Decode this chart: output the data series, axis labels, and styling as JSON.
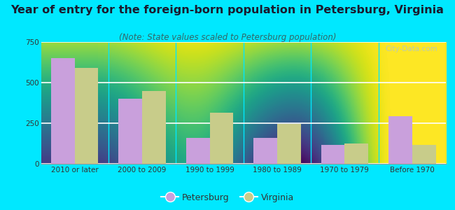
{
  "title": "Year of entry for the foreign-born population in Petersburg, Virginia",
  "subtitle": "(Note: State values scaled to Petersburg population)",
  "categories": [
    "2010 or later",
    "2000 to 2009",
    "1990 to 1999",
    "1980 to 1989",
    "1970 to 1979",
    "Before 1970"
  ],
  "petersburg_values": [
    650,
    400,
    160,
    160,
    115,
    295
  ],
  "virginia_values": [
    590,
    450,
    315,
    245,
    125,
    115
  ],
  "petersburg_color": "#c9a0dc",
  "virginia_color": "#c8cc8a",
  "background_outer": "#00e8ff",
  "background_plot_color": "#e8f0e0",
  "ylim": [
    0,
    750
  ],
  "yticks": [
    0,
    250,
    500,
    750
  ],
  "bar_width": 0.35,
  "title_fontsize": 11.5,
  "subtitle_fontsize": 8.5,
  "tick_fontsize": 7.5,
  "legend_fontsize": 9,
  "watermark": "City-Data.com"
}
